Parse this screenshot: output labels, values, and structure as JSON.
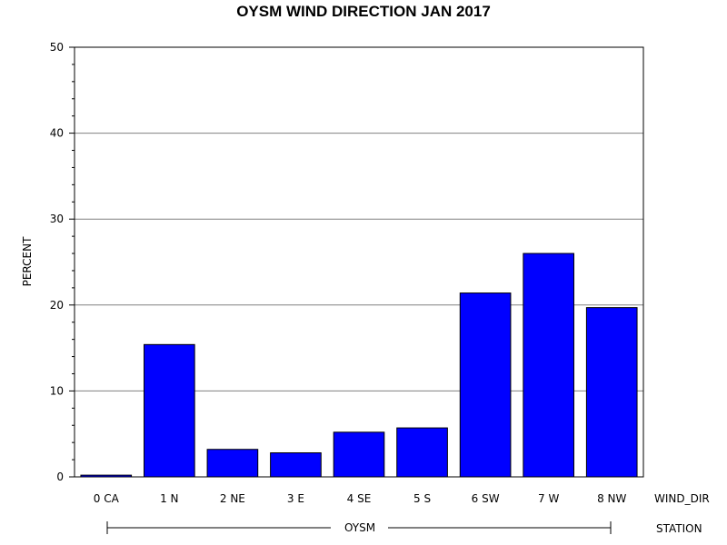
{
  "chart_data": {
    "type": "bar",
    "title": "OYSM WIND DIRECTION JAN 2017",
    "ylabel": "PERCENT",
    "xlabel": "WIND_DIR",
    "group_axis_label": "STATION",
    "group_name": "OYSM",
    "categories": [
      "0 CA",
      "1 N",
      "2 NE",
      "3 E",
      "4 SE",
      "5 S",
      "6 SW",
      "7 W",
      "8 NW"
    ],
    "values": [
      0.2,
      15.4,
      3.2,
      2.8,
      5.2,
      5.7,
      21.4,
      26.0,
      19.7
    ],
    "ylim": [
      0,
      50
    ],
    "yticks": [
      0,
      10,
      20,
      30,
      40,
      50
    ],
    "grid": true,
    "bar_color": "#0000ff"
  }
}
